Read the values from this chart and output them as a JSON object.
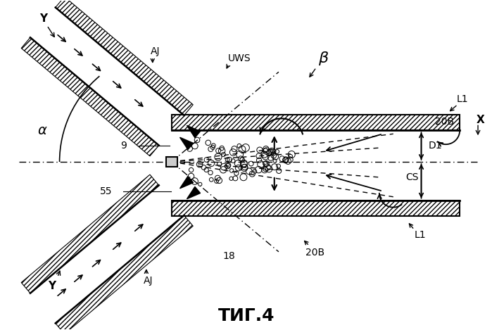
{
  "title": "ΤИГ.4",
  "background_color": "#ffffff",
  "line_color": "#000000",
  "fig_width": 6.99,
  "fig_height": 4.69,
  "dpi": 100,
  "labels": {
    "Y_top": "Y",
    "Y_bottom": "Y",
    "X": "X",
    "alpha": "α",
    "beta": "β",
    "AJ_top": "AJ",
    "AJ_bottom": "AJ",
    "UWS": "UWS",
    "L1_top": "L1",
    "L1_bottom": "L1",
    "20B_top": "20B",
    "20B_bottom": "20B",
    "D1": "D1",
    "CS": "CS",
    "num9": "9",
    "num55": "55",
    "num18": "18"
  }
}
